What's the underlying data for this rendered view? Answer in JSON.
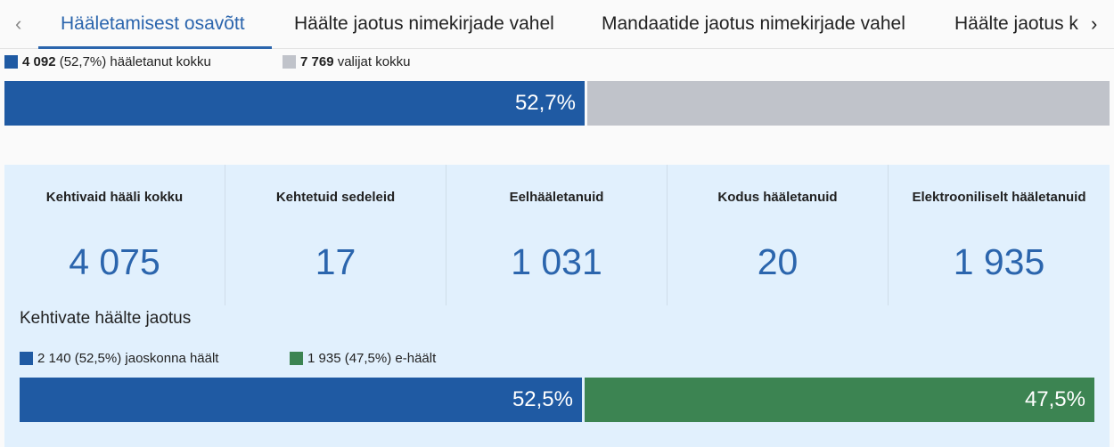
{
  "tabs": {
    "prev_icon": "‹",
    "next_icon": "›",
    "items": [
      {
        "label": "Hääletamisest osavõtt",
        "active": true
      },
      {
        "label": "Häälte jaotus nimekirjade vahel"
      },
      {
        "label": "Mandaatide jaotus nimekirjade vahel"
      },
      {
        "label": "Häälte jaotus k"
      }
    ]
  },
  "turnout": {
    "voted_count": "4 092",
    "voted_pct": "(52,7%) hääletanut kokku",
    "total_count": "7 769",
    "total_label": "valijat kokku",
    "bar_label": "52,7%",
    "fraction": 0.527,
    "colors": {
      "voted": "#1f5aa3",
      "rest": "#c0c3ca"
    }
  },
  "stats": [
    {
      "title": "Kehtivaid hääli kokku",
      "value": "4 075"
    },
    {
      "title": "Kehtetuid sedeleid",
      "value": "17"
    },
    {
      "title": "Eelhääletanuid",
      "value": "1 031"
    },
    {
      "title": "Kodus hääletanuid",
      "value": "20"
    },
    {
      "title": "Elektrooniliselt hääletanuid",
      "value": "1 935"
    }
  ],
  "split": {
    "title": "Kehtivate häälte jaotus",
    "precinct_legend": "2 140 (52,5%) jaoskonna häält",
    "e_legend": "1 935 (47,5%) e-häält",
    "precinct_bar": "52,5%",
    "e_bar": "47,5%",
    "fraction": 0.525,
    "colors": {
      "precinct": "#1f5aa3",
      "e": "#3c8452"
    }
  }
}
